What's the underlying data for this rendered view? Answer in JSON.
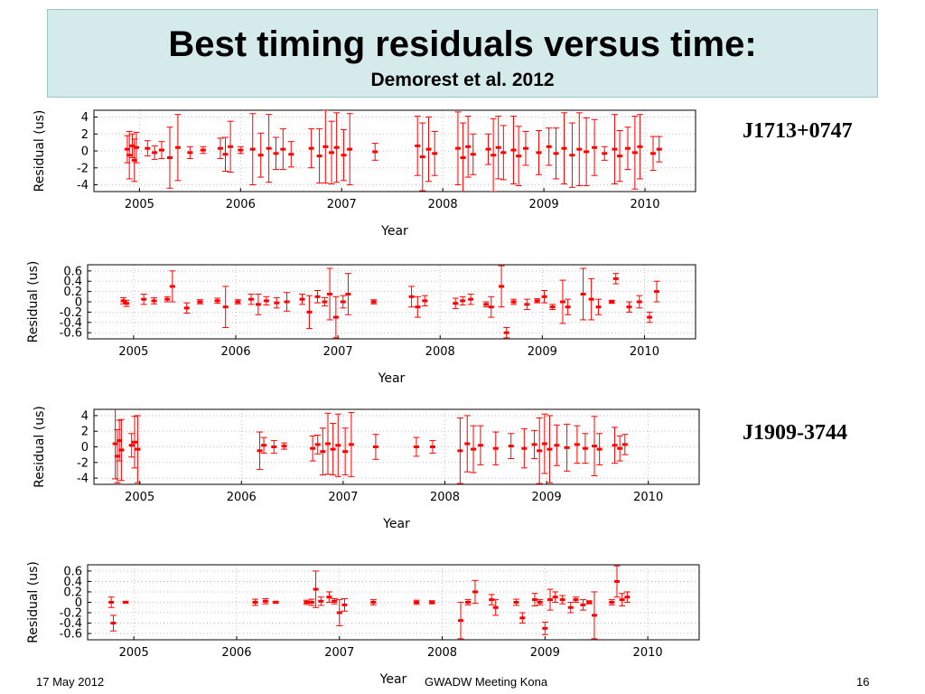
{
  "header": {
    "title": "Best timing residuals versus time:",
    "subtitle": "Demorest et al. 2012"
  },
  "labels": {
    "pulsar_top": "J1713+0747",
    "pulsar_bottom": "J1909-3744"
  },
  "footer": {
    "date": "17 May 2012",
    "meeting": "GWADW Meeting Kona",
    "page": "16"
  },
  "colors": {
    "marker": "#ff0000",
    "title_bg": "#d5eaea"
  },
  "chart_data": [
    {
      "type": "scatter",
      "pulsar": "J1713+0747",
      "xlabel": "Year",
      "ylabel": "Residual (us)",
      "xlim": [
        2004.55,
        2010.5
      ],
      "ylim": [
        -4.8,
        4.8
      ],
      "xticks": [
        "2005",
        "2006",
        "2007",
        "2008",
        "2009",
        "2010"
      ],
      "yticks": [
        "4",
        "2",
        "0",
        "-2",
        "-4"
      ],
      "ytick_values": [
        4,
        2,
        0,
        -2,
        -4
      ],
      "grid": true,
      "points": [
        {
          "x": 2004.88,
          "y": 0.2,
          "err": 1.6
        },
        {
          "x": 2004.9,
          "y": -0.5,
          "err": 2.8
        },
        {
          "x": 2004.93,
          "y": 0.6,
          "err": 1.4
        },
        {
          "x": 2004.95,
          "y": -1.1,
          "err": 2.5
        },
        {
          "x": 2004.97,
          "y": 0.4,
          "err": 1.8
        },
        {
          "x": 2005.08,
          "y": 0.3,
          "err": 0.9
        },
        {
          "x": 2005.15,
          "y": -0.2,
          "err": 0.8
        },
        {
          "x": 2005.22,
          "y": 0.1,
          "err": 1.0
        },
        {
          "x": 2005.3,
          "y": -0.8,
          "err": 3.6
        },
        {
          "x": 2005.38,
          "y": 0.4,
          "err": 3.9
        },
        {
          "x": 2005.5,
          "y": -0.2,
          "err": 0.7
        },
        {
          "x": 2005.63,
          "y": 0.1,
          "err": 0.4
        },
        {
          "x": 2005.8,
          "y": 0.3,
          "err": 1.2
        },
        {
          "x": 2005.85,
          "y": -0.4,
          "err": 2.0
        },
        {
          "x": 2005.9,
          "y": 0.5,
          "err": 3.0
        },
        {
          "x": 2006.0,
          "y": 0.1,
          "err": 0.4
        },
        {
          "x": 2006.12,
          "y": 0.2,
          "err": 4.2
        },
        {
          "x": 2006.2,
          "y": -0.5,
          "err": 2.6
        },
        {
          "x": 2006.28,
          "y": 0.3,
          "err": 4.0
        },
        {
          "x": 2006.35,
          "y": -0.3,
          "err": 1.9
        },
        {
          "x": 2006.42,
          "y": 0.2,
          "err": 2.4
        },
        {
          "x": 2006.5,
          "y": -0.4,
          "err": 1.5
        },
        {
          "x": 2006.7,
          "y": 0.3,
          "err": 2.3
        },
        {
          "x": 2006.78,
          "y": -0.6,
          "err": 3.2
        },
        {
          "x": 2006.84,
          "y": 0.5,
          "err": 4.3
        },
        {
          "x": 2006.9,
          "y": -0.2,
          "err": 3.7
        },
        {
          "x": 2006.95,
          "y": 0.4,
          "err": 4.1
        },
        {
          "x": 2007.02,
          "y": -0.5,
          "err": 3.0
        },
        {
          "x": 2007.08,
          "y": 0.2,
          "err": 4.2
        },
        {
          "x": 2007.33,
          "y": -0.1,
          "err": 1.0
        },
        {
          "x": 2007.75,
          "y": 0.6,
          "err": 3.5
        },
        {
          "x": 2007.8,
          "y": -0.7,
          "err": 4.0
        },
        {
          "x": 2007.86,
          "y": 0.2,
          "err": 3.8
        },
        {
          "x": 2007.92,
          "y": -0.3,
          "err": 2.6
        },
        {
          "x": 2008.15,
          "y": 0.3,
          "err": 4.3
        },
        {
          "x": 2008.2,
          "y": -0.8,
          "err": 4.1
        },
        {
          "x": 2008.25,
          "y": 0.5,
          "err": 3.6
        },
        {
          "x": 2008.3,
          "y": -0.4,
          "err": 2.4
        },
        {
          "x": 2008.45,
          "y": 0.2,
          "err": 1.8
        },
        {
          "x": 2008.5,
          "y": -0.5,
          "err": 4.3
        },
        {
          "x": 2008.55,
          "y": 0.4,
          "err": 3.7
        },
        {
          "x": 2008.6,
          "y": -0.2,
          "err": 3.2
        },
        {
          "x": 2008.7,
          "y": 0.1,
          "err": 4.0
        },
        {
          "x": 2008.75,
          "y": -0.6,
          "err": 3.5
        },
        {
          "x": 2008.82,
          "y": 0.3,
          "err": 2.0
        },
        {
          "x": 2008.95,
          "y": -0.2,
          "err": 2.6
        },
        {
          "x": 2009.05,
          "y": 0.5,
          "err": 2.2
        },
        {
          "x": 2009.12,
          "y": -0.3,
          "err": 3.0
        },
        {
          "x": 2009.2,
          "y": 0.3,
          "err": 4.2
        },
        {
          "x": 2009.28,
          "y": -0.5,
          "err": 3.8
        },
        {
          "x": 2009.35,
          "y": 0.2,
          "err": 4.3
        },
        {
          "x": 2009.42,
          "y": -0.1,
          "err": 4.0
        },
        {
          "x": 2009.5,
          "y": 0.4,
          "err": 3.3
        },
        {
          "x": 2009.6,
          "y": -0.3,
          "err": 0.8
        },
        {
          "x": 2009.7,
          "y": 0.2,
          "err": 4.1
        },
        {
          "x": 2009.75,
          "y": -0.6,
          "err": 3.0
        },
        {
          "x": 2009.83,
          "y": 0.3,
          "err": 2.5
        },
        {
          "x": 2009.9,
          "y": -0.2,
          "err": 4.3
        },
        {
          "x": 2009.95,
          "y": 0.5,
          "err": 3.8
        },
        {
          "x": 2010.08,
          "y": -0.3,
          "err": 2.0
        },
        {
          "x": 2010.14,
          "y": 0.2,
          "err": 1.5
        }
      ]
    },
    {
      "type": "scatter",
      "pulsar": "J1713+0747",
      "xlabel": "Year",
      "ylabel": "Residual (us)",
      "xlim": [
        2004.55,
        2010.5
      ],
      "ylim": [
        -0.72,
        0.72
      ],
      "xticks": [
        "2005",
        "2006",
        "2007",
        "2008",
        "2009",
        "2010"
      ],
      "yticks": [
        "0.6",
        "0.4",
        "0.2",
        "0",
        "-0.2",
        "-0.4",
        "-0.6"
      ],
      "ytick_values": [
        0.6,
        0.4,
        0.2,
        0,
        -0.2,
        -0.4,
        -0.6
      ],
      "grid": true,
      "points": [
        {
          "x": 2004.9,
          "y": 0.02,
          "err": 0.06
        },
        {
          "x": 2004.93,
          "y": -0.03,
          "err": 0.06
        },
        {
          "x": 2005.1,
          "y": 0.05,
          "err": 0.1
        },
        {
          "x": 2005.2,
          "y": 0.02,
          "err": 0.06
        },
        {
          "x": 2005.33,
          "y": 0.05,
          "err": 0.05
        },
        {
          "x": 2005.38,
          "y": 0.3,
          "err": 0.3
        },
        {
          "x": 2005.52,
          "y": -0.12,
          "err": 0.1
        },
        {
          "x": 2005.65,
          "y": 0.0,
          "err": 0.04
        },
        {
          "x": 2005.82,
          "y": 0.02,
          "err": 0.05
        },
        {
          "x": 2005.9,
          "y": -0.1,
          "err": 0.4
        },
        {
          "x": 2006.02,
          "y": 0.0,
          "err": 0.04
        },
        {
          "x": 2006.15,
          "y": 0.05,
          "err": 0.1
        },
        {
          "x": 2006.22,
          "y": -0.05,
          "err": 0.2
        },
        {
          "x": 2006.3,
          "y": 0.02,
          "err": 0.08
        },
        {
          "x": 2006.4,
          "y": -0.02,
          "err": 0.1
        },
        {
          "x": 2006.5,
          "y": 0.0,
          "err": 0.18
        },
        {
          "x": 2006.65,
          "y": 0.05,
          "err": 0.1
        },
        {
          "x": 2006.72,
          "y": -0.2,
          "err": 0.32
        },
        {
          "x": 2006.8,
          "y": 0.1,
          "err": 0.12
        },
        {
          "x": 2006.87,
          "y": 0.0,
          "err": 0.08
        },
        {
          "x": 2006.92,
          "y": 0.15,
          "err": 0.5
        },
        {
          "x": 2006.98,
          "y": -0.3,
          "err": 0.4
        },
        {
          "x": 2007.05,
          "y": 0.0,
          "err": 0.12
        },
        {
          "x": 2007.1,
          "y": 0.15,
          "err": 0.4
        },
        {
          "x": 2007.35,
          "y": 0.0,
          "err": 0.04
        },
        {
          "x": 2007.72,
          "y": 0.1,
          "err": 0.2
        },
        {
          "x": 2007.78,
          "y": -0.1,
          "err": 0.2
        },
        {
          "x": 2007.85,
          "y": 0.02,
          "err": 0.1
        },
        {
          "x": 2008.15,
          "y": -0.03,
          "err": 0.1
        },
        {
          "x": 2008.22,
          "y": 0.02,
          "err": 0.08
        },
        {
          "x": 2008.3,
          "y": 0.05,
          "err": 0.1
        },
        {
          "x": 2008.45,
          "y": -0.05,
          "err": 0.05
        },
        {
          "x": 2008.5,
          "y": -0.1,
          "err": 0.2
        },
        {
          "x": 2008.6,
          "y": 0.3,
          "err": 0.4
        },
        {
          "x": 2008.65,
          "y": -0.6,
          "err": 0.1
        },
        {
          "x": 2008.72,
          "y": 0.0,
          "err": 0.05
        },
        {
          "x": 2008.85,
          "y": -0.05,
          "err": 0.1
        },
        {
          "x": 2008.95,
          "y": 0.02,
          "err": 0.04
        },
        {
          "x": 2009.02,
          "y": 0.1,
          "err": 0.12
        },
        {
          "x": 2009.1,
          "y": -0.1,
          "err": 0.05
        },
        {
          "x": 2009.2,
          "y": 0.0,
          "err": 0.42
        },
        {
          "x": 2009.25,
          "y": -0.1,
          "err": 0.15
        },
        {
          "x": 2009.4,
          "y": 0.15,
          "err": 0.5
        },
        {
          "x": 2009.48,
          "y": 0.05,
          "err": 0.4
        },
        {
          "x": 2009.55,
          "y": -0.1,
          "err": 0.15
        },
        {
          "x": 2009.68,
          "y": 0.0,
          "err": 0.03
        },
        {
          "x": 2009.72,
          "y": 0.45,
          "err": 0.1
        },
        {
          "x": 2009.85,
          "y": -0.1,
          "err": 0.1
        },
        {
          "x": 2009.95,
          "y": 0.0,
          "err": 0.12
        },
        {
          "x": 2010.05,
          "y": -0.3,
          "err": 0.1
        },
        {
          "x": 2010.12,
          "y": 0.2,
          "err": 0.2
        }
      ]
    },
    {
      "type": "scatter",
      "pulsar": "J1909-3744",
      "xlabel": "Year",
      "ylabel": "Residual (us)",
      "xlim": [
        2004.55,
        2010.5
      ],
      "ylim": [
        -4.8,
        4.8
      ],
      "xticks": [
        "2005",
        "2006",
        "2007",
        "2008",
        "2009",
        "2010"
      ],
      "yticks": [
        "4",
        "2",
        "0",
        "-2",
        "-4"
      ],
      "ytick_values": [
        4,
        2,
        0,
        -2,
        -4
      ],
      "grid": true,
      "points": [
        {
          "x": 2004.76,
          "y": 0.4,
          "err": 4.5
        },
        {
          "x": 2004.78,
          "y": -1.2,
          "err": 3.4
        },
        {
          "x": 2004.8,
          "y": 0.8,
          "err": 2.6
        },
        {
          "x": 2004.82,
          "y": -0.4,
          "err": 3.9
        },
        {
          "x": 2004.92,
          "y": 0.2,
          "err": 1.5
        },
        {
          "x": 2004.95,
          "y": 0.6,
          "err": 3.3
        },
        {
          "x": 2004.98,
          "y": -0.3,
          "err": 4.3
        },
        {
          "x": 2006.18,
          "y": -0.5,
          "err": 2.4
        },
        {
          "x": 2006.22,
          "y": 0.2,
          "err": 1.0
        },
        {
          "x": 2006.32,
          "y": 0.0,
          "err": 0.8
        },
        {
          "x": 2006.42,
          "y": 0.1,
          "err": 0.4
        },
        {
          "x": 2006.7,
          "y": -0.2,
          "err": 1.6
        },
        {
          "x": 2006.75,
          "y": 0.3,
          "err": 1.2
        },
        {
          "x": 2006.8,
          "y": -0.6,
          "err": 3.0
        },
        {
          "x": 2006.85,
          "y": 0.4,
          "err": 3.9
        },
        {
          "x": 2006.9,
          "y": -0.3,
          "err": 3.3
        },
        {
          "x": 2006.95,
          "y": 0.2,
          "err": 4.0
        },
        {
          "x": 2007.02,
          "y": -0.6,
          "err": 3.0
        },
        {
          "x": 2007.08,
          "y": 0.3,
          "err": 4.1
        },
        {
          "x": 2007.32,
          "y": 0.0,
          "err": 1.6
        },
        {
          "x": 2007.72,
          "y": 0.0,
          "err": 1.2
        },
        {
          "x": 2007.88,
          "y": 0.0,
          "err": 0.8
        },
        {
          "x": 2008.15,
          "y": -0.5,
          "err": 4.2
        },
        {
          "x": 2008.22,
          "y": 0.4,
          "err": 3.6
        },
        {
          "x": 2008.28,
          "y": -0.3,
          "err": 3.0
        },
        {
          "x": 2008.35,
          "y": 0.2,
          "err": 2.5
        },
        {
          "x": 2008.5,
          "y": -0.2,
          "err": 2.1
        },
        {
          "x": 2008.65,
          "y": 0.1,
          "err": 1.6
        },
        {
          "x": 2008.78,
          "y": -0.2,
          "err": 2.5
        },
        {
          "x": 2008.88,
          "y": 0.3,
          "err": 1.8
        },
        {
          "x": 2008.93,
          "y": -0.5,
          "err": 4.2
        },
        {
          "x": 2008.98,
          "y": 0.4,
          "err": 3.8
        },
        {
          "x": 2009.03,
          "y": -0.3,
          "err": 4.3
        },
        {
          "x": 2009.1,
          "y": 0.2,
          "err": 2.6
        },
        {
          "x": 2009.2,
          "y": -0.1,
          "err": 3.0
        },
        {
          "x": 2009.3,
          "y": 0.3,
          "err": 2.4
        },
        {
          "x": 2009.38,
          "y": -0.2,
          "err": 1.9
        },
        {
          "x": 2009.47,
          "y": 0.1,
          "err": 3.8
        },
        {
          "x": 2009.52,
          "y": -0.3,
          "err": 2.0
        },
        {
          "x": 2009.67,
          "y": 0.2,
          "err": 2.3
        },
        {
          "x": 2009.72,
          "y": -0.2,
          "err": 1.6
        },
        {
          "x": 2009.77,
          "y": 0.3,
          "err": 1.3
        }
      ]
    },
    {
      "type": "scatter",
      "pulsar": "J1909-3744",
      "xlabel": "Year",
      "ylabel": "Residual (us)",
      "xlim": [
        2004.55,
        2010.5
      ],
      "ylim": [
        -0.72,
        0.72
      ],
      "xticks": [
        "2005",
        "2006",
        "2007",
        "2008",
        "2009",
        "2010"
      ],
      "yticks": [
        "0.6",
        "0.4",
        "0.2",
        "0",
        "-0.2",
        "-0.4",
        "-0.6"
      ],
      "ytick_values": [
        0.6,
        0.4,
        0.2,
        0,
        -0.2,
        -0.4,
        -0.6
      ],
      "grid": true,
      "points": [
        {
          "x": 2004.78,
          "y": 0.0,
          "err": 0.1
        },
        {
          "x": 2004.8,
          "y": -0.4,
          "err": 0.15
        },
        {
          "x": 2004.92,
          "y": 0.0,
          "err": 0.02
        },
        {
          "x": 2006.18,
          "y": 0.0,
          "err": 0.06
        },
        {
          "x": 2006.28,
          "y": 0.02,
          "err": 0.05
        },
        {
          "x": 2006.38,
          "y": 0.0,
          "err": 0.02
        },
        {
          "x": 2006.68,
          "y": 0.0,
          "err": 0.04
        },
        {
          "x": 2006.73,
          "y": 0.0,
          "err": 0.06
        },
        {
          "x": 2006.77,
          "y": 0.25,
          "err": 0.35
        },
        {
          "x": 2006.82,
          "y": 0.02,
          "err": 0.08
        },
        {
          "x": 2006.9,
          "y": 0.1,
          "err": 0.1
        },
        {
          "x": 2006.95,
          "y": 0.02,
          "err": 0.05
        },
        {
          "x": 2007.0,
          "y": -0.2,
          "err": 0.25
        },
        {
          "x": 2007.05,
          "y": -0.05,
          "err": 0.12
        },
        {
          "x": 2007.33,
          "y": 0.0,
          "err": 0.05
        },
        {
          "x": 2007.75,
          "y": 0.0,
          "err": 0.04
        },
        {
          "x": 2007.9,
          "y": 0.0,
          "err": 0.03
        },
        {
          "x": 2008.18,
          "y": -0.35,
          "err": 0.35
        },
        {
          "x": 2008.25,
          "y": 0.0,
          "err": 0.05
        },
        {
          "x": 2008.32,
          "y": 0.2,
          "err": 0.22
        },
        {
          "x": 2008.48,
          "y": 0.05,
          "err": 0.1
        },
        {
          "x": 2008.52,
          "y": -0.1,
          "err": 0.15
        },
        {
          "x": 2008.72,
          "y": 0.0,
          "err": 0.06
        },
        {
          "x": 2008.78,
          "y": -0.3,
          "err": 0.1
        },
        {
          "x": 2008.9,
          "y": 0.05,
          "err": 0.12
        },
        {
          "x": 2008.95,
          "y": 0.0,
          "err": 0.05
        },
        {
          "x": 2009.0,
          "y": -0.5,
          "err": 0.12
        },
        {
          "x": 2009.05,
          "y": 0.05,
          "err": 0.2
        },
        {
          "x": 2009.1,
          "y": 0.1,
          "err": 0.1
        },
        {
          "x": 2009.17,
          "y": 0.05,
          "err": 0.08
        },
        {
          "x": 2009.25,
          "y": -0.1,
          "err": 0.1
        },
        {
          "x": 2009.3,
          "y": 0.05,
          "err": 0.05
        },
        {
          "x": 2009.37,
          "y": -0.05,
          "err": 0.1
        },
        {
          "x": 2009.43,
          "y": 0.0,
          "err": 0.03
        },
        {
          "x": 2009.48,
          "y": -0.25,
          "err": 0.45
        },
        {
          "x": 2009.65,
          "y": 0.0,
          "err": 0.05
        },
        {
          "x": 2009.7,
          "y": 0.4,
          "err": 0.3
        },
        {
          "x": 2009.75,
          "y": 0.05,
          "err": 0.12
        },
        {
          "x": 2009.8,
          "y": 0.1,
          "err": 0.1
        }
      ]
    }
  ]
}
